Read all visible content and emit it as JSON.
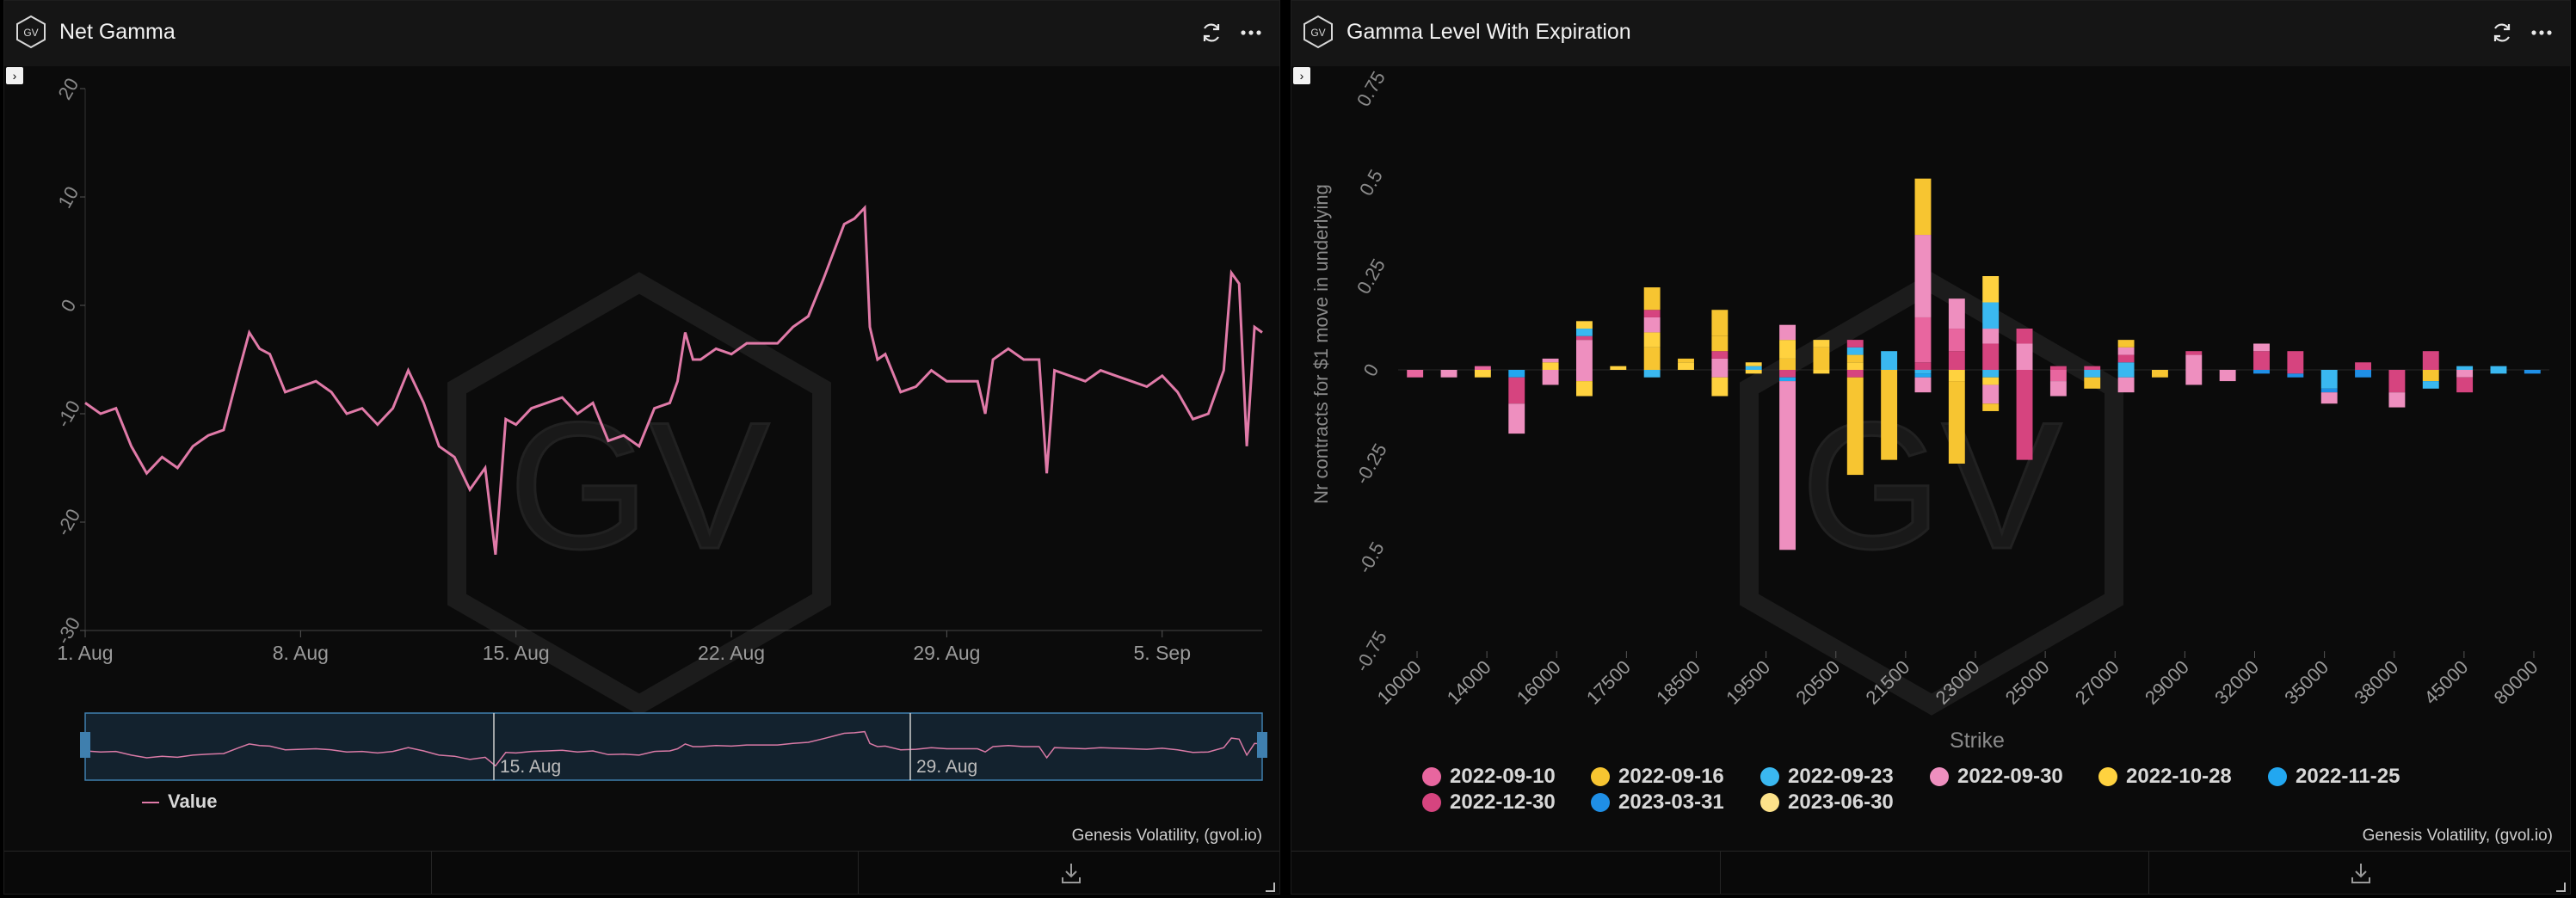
{
  "panels": [
    {
      "title": "Net Gamma",
      "credit": "Genesis Volatility, (gvol.io)",
      "logo_text": "GV",
      "navigator_labels": [
        "15. Aug",
        "29. Aug"
      ],
      "legend_label": "Value"
    },
    {
      "title": "Gamma Level With Expiration",
      "credit": "Genesis Volatility, (gvol.io)",
      "logo_text": "GV"
    }
  ],
  "colors": {
    "line": "#e07aa8",
    "background": "#0b0b0b",
    "header": "#151515",
    "series": [
      "#e8669f",
      "#f7c531",
      "#3ab8f0",
      "#ee8fbf",
      "#ffd23f",
      "#22a7f0",
      "#d6447f",
      "#1f8fe6",
      "#fde28a"
    ]
  },
  "icons": {
    "refresh": "refresh-icon",
    "menu": "more-dots-icon",
    "download": "download-icon",
    "expand": "expand-icon"
  },
  "chart_data": [
    {
      "type": "line",
      "title": "Net Gamma",
      "xlabel": "",
      "ylabel": "",
      "x_ticks": [
        "1. Aug",
        "8. Aug",
        "15. Aug",
        "22. Aug",
        "29. Aug",
        "5. Sep"
      ],
      "y_ticks": [
        "20",
        "10",
        "0",
        "-10",
        "-20",
        "-30"
      ],
      "ylim": [
        -30,
        20
      ],
      "xlim": [
        "2022-08-01",
        "2022-09-08"
      ],
      "grid": "x",
      "legend": "bottom-left",
      "series": [
        {
          "name": "Value",
          "points": [
            [
              "2022-08-01",
              -9
            ],
            [
              "2022-08-01T12",
              -10
            ],
            [
              "2022-08-02",
              -9.5
            ],
            [
              "2022-08-02T12",
              -13
            ],
            [
              "2022-08-03",
              -15.5
            ],
            [
              "2022-08-03T12",
              -14
            ],
            [
              "2022-08-04",
              -15
            ],
            [
              "2022-08-04T12",
              -13
            ],
            [
              "2022-08-05",
              -12
            ],
            [
              "2022-08-05T12",
              -11.5
            ],
            [
              "2022-08-06",
              -6
            ],
            [
              "2022-08-06T08",
              -2.5
            ],
            [
              "2022-08-06T16",
              -4
            ],
            [
              "2022-08-07",
              -4.5
            ],
            [
              "2022-08-07T12",
              -8
            ],
            [
              "2022-08-08",
              -7.5
            ],
            [
              "2022-08-08T12",
              -7
            ],
            [
              "2022-08-09",
              -8
            ],
            [
              "2022-08-09T12",
              -10
            ],
            [
              "2022-08-10",
              -9.5
            ],
            [
              "2022-08-10T12",
              -11
            ],
            [
              "2022-08-11",
              -9.5
            ],
            [
              "2022-08-11T12",
              -6
            ],
            [
              "2022-08-12",
              -9
            ],
            [
              "2022-08-12T12",
              -13
            ],
            [
              "2022-08-13",
              -14
            ],
            [
              "2022-08-13T12",
              -17
            ],
            [
              "2022-08-14",
              -15
            ],
            [
              "2022-08-14T08",
              -23
            ],
            [
              "2022-08-14T16",
              -10.5
            ],
            [
              "2022-08-15",
              -11
            ],
            [
              "2022-08-15T12",
              -9.5
            ],
            [
              "2022-08-16",
              -9
            ],
            [
              "2022-08-16T12",
              -8.5
            ],
            [
              "2022-08-17",
              -10
            ],
            [
              "2022-08-17T12",
              -9
            ],
            [
              "2022-08-18",
              -12.5
            ],
            [
              "2022-08-18T12",
              -12
            ],
            [
              "2022-08-19",
              -13
            ],
            [
              "2022-08-19T12",
              -9.5
            ],
            [
              "2022-08-20",
              -9
            ],
            [
              "2022-08-20T06",
              -7
            ],
            [
              "2022-08-20T12",
              -2.5
            ],
            [
              "2022-08-20T18",
              -5
            ],
            [
              "2022-08-21",
              -5
            ],
            [
              "2022-08-21T12",
              -4
            ],
            [
              "2022-08-22",
              -4.5
            ],
            [
              "2022-08-22T12",
              -3.5
            ],
            [
              "2022-08-23",
              -3.5
            ],
            [
              "2022-08-23T12",
              -3.5
            ],
            [
              "2022-08-24",
              -2
            ],
            [
              "2022-08-24T12",
              -1
            ],
            [
              "2022-08-25",
              2.5
            ],
            [
              "2022-08-25T08",
              5
            ],
            [
              "2022-08-25T16",
              7.5
            ],
            [
              "2022-08-26",
              8
            ],
            [
              "2022-08-26T08",
              9
            ],
            [
              "2022-08-26T12",
              -2
            ],
            [
              "2022-08-26T18",
              -5
            ],
            [
              "2022-08-27",
              -4.5
            ],
            [
              "2022-08-27T12",
              -8
            ],
            [
              "2022-08-28",
              -7.5
            ],
            [
              "2022-08-28T12",
              -6
            ],
            [
              "2022-08-29",
              -7
            ],
            [
              "2022-08-29T12",
              -7
            ],
            [
              "2022-08-30",
              -7
            ],
            [
              "2022-08-30T06",
              -10
            ],
            [
              "2022-08-30T12",
              -5
            ],
            [
              "2022-08-31",
              -4
            ],
            [
              "2022-08-31T12",
              -5
            ],
            [
              "2022-09-01",
              -5
            ],
            [
              "2022-09-01T06",
              -15.5
            ],
            [
              "2022-09-01T12",
              -6
            ],
            [
              "2022-09-02",
              -6.5
            ],
            [
              "2022-09-02T12",
              -7
            ],
            [
              "2022-09-03",
              -6
            ],
            [
              "2022-09-03T12",
              -6.5
            ],
            [
              "2022-09-04",
              -7
            ],
            [
              "2022-09-04T12",
              -7.5
            ],
            [
              "2022-09-05",
              -6.5
            ],
            [
              "2022-09-05T12",
              -8
            ],
            [
              "2022-09-06",
              -10.5
            ],
            [
              "2022-09-06T12",
              -10
            ],
            [
              "2022-09-07",
              -6
            ],
            [
              "2022-09-07T06",
              3
            ],
            [
              "2022-09-07T12",
              2
            ],
            [
              "2022-09-07T18",
              -13
            ],
            [
              "2022-09-08",
              -2
            ],
            [
              "2022-09-08T06",
              -2.5
            ]
          ]
        }
      ]
    },
    {
      "type": "bar",
      "title": "Gamma Level With Expiration",
      "xlabel": "Strike",
      "ylabel": "Nr contracts for $1 move in underlying",
      "ylim": [
        -0.75,
        0.75
      ],
      "y_ticks": [
        "0.75",
        "0.5",
        "0.25",
        "0",
        "-0.25",
        "-0.5",
        "-0.75"
      ],
      "stacked": true,
      "legend": "bottom",
      "x_tick_labels": [
        "10000",
        "14000",
        "16000",
        "17500",
        "18500",
        "19500",
        "20500",
        "21500",
        "23000",
        "25000",
        "27000",
        "29000",
        "32000",
        "35000",
        "38000",
        "45000",
        "80000"
      ],
      "series_names": [
        "2022-09-10",
        "2022-09-16",
        "2022-09-23",
        "2022-09-30",
        "2022-10-28",
        "2022-11-25",
        "2022-12-30",
        "2023-03-31",
        "2023-06-30"
      ],
      "bars": [
        {
          "pos": [],
          "neg": [
            [
              0,
              0.02
            ]
          ]
        },
        {
          "pos": [],
          "neg": [
            [
              3,
              0.02
            ]
          ]
        },
        {
          "pos": [
            [
              0,
              0.01
            ]
          ],
          "neg": [
            [
              4,
              0.02
            ]
          ]
        },
        {
          "pos": [],
          "neg": [
            [
              5,
              0.02
            ],
            [
              6,
              0.07
            ],
            [
              3,
              0.08
            ]
          ]
        },
        {
          "pos": [
            [
              4,
              0.02
            ],
            [
              3,
              0.01
            ]
          ],
          "neg": [
            [
              3,
              0.04
            ]
          ]
        },
        {
          "pos": [
            [
              3,
              0.08
            ],
            [
              6,
              0.01
            ],
            [
              2,
              0.02
            ],
            [
              4,
              0.02
            ]
          ],
          "neg": [
            [
              3,
              0.03
            ],
            [
              4,
              0.04
            ]
          ]
        },
        {
          "pos": [
            [
              4,
              0.01
            ]
          ],
          "neg": []
        },
        {
          "pos": [
            [
              1,
              0.06
            ],
            [
              4,
              0.04
            ],
            [
              3,
              0.04
            ],
            [
              6,
              0.02
            ],
            [
              1,
              0.06
            ]
          ],
          "neg": [
            [
              2,
              0.02
            ]
          ]
        },
        {
          "pos": [
            [
              4,
              0.02
            ],
            [
              1,
              0.01
            ]
          ],
          "neg": []
        },
        {
          "pos": [
            [
              3,
              0.03
            ],
            [
              6,
              0.02
            ],
            [
              1,
              0.04
            ],
            [
              1,
              0.07
            ]
          ],
          "neg": [
            [
              3,
              0.02
            ],
            [
              4,
              0.05
            ]
          ]
        },
        {
          "pos": [
            [
              2,
              0.01
            ],
            [
              4,
              0.01
            ]
          ],
          "neg": [
            [
              4,
              0.01
            ]
          ]
        },
        {
          "pos": [
            [
              1,
              0.03
            ],
            [
              4,
              0.05
            ],
            [
              3,
              0.04
            ]
          ],
          "neg": [
            [
              6,
              0.02
            ],
            [
              5,
              0.01
            ],
            [
              3,
              0.45
            ]
          ]
        },
        {
          "pos": [
            [
              1,
              0.06
            ],
            [
              4,
              0.02
            ]
          ],
          "neg": [
            [
              4,
              0.01
            ]
          ]
        },
        {
          "pos": [
            [
              4,
              0.02
            ],
            [
              1,
              0.02
            ],
            [
              2,
              0.02
            ],
            [
              6,
              0.02
            ]
          ],
          "neg": [
            [
              6,
              0.02
            ],
            [
              1,
              0.26
            ]
          ]
        },
        {
          "pos": [
            [
              2,
              0.05
            ]
          ],
          "neg": [
            [
              1,
              0.24
            ]
          ]
        },
        {
          "pos": [
            [
              6,
              0.02
            ],
            [
              0,
              0.12
            ],
            [
              3,
              0.22
            ],
            [
              1,
              0.15
            ]
          ],
          "neg": [
            [
              2,
              0.01
            ],
            [
              5,
              0.01
            ],
            [
              3,
              0.04
            ]
          ]
        },
        {
          "pos": [
            [
              6,
              0.05
            ],
            [
              0,
              0.06
            ],
            [
              3,
              0.08
            ]
          ],
          "neg": [
            [
              4,
              0.03
            ],
            [
              1,
              0.22
            ]
          ]
        },
        {
          "pos": [
            [
              6,
              0.07
            ],
            [
              3,
              0.04
            ],
            [
              2,
              0.07
            ],
            [
              4,
              0.07
            ]
          ],
          "neg": [
            [
              2,
              0.02
            ],
            [
              4,
              0.02
            ],
            [
              3,
              0.05
            ],
            [
              1,
              0.02
            ]
          ]
        },
        {
          "pos": [
            [
              3,
              0.07
            ],
            [
              6,
              0.04
            ]
          ],
          "neg": [
            [
              6,
              0.24
            ]
          ]
        },
        {
          "pos": [
            [
              6,
              0.01
            ]
          ],
          "neg": [
            [
              0,
              0.03
            ],
            [
              3,
              0.04
            ]
          ]
        },
        {
          "pos": [
            [
              6,
              0.01
            ]
          ],
          "neg": [
            [
              2,
              0.02
            ],
            [
              1,
              0.03
            ]
          ]
        },
        {
          "pos": [
            [
              2,
              0.02
            ],
            [
              6,
              0.02
            ],
            [
              3,
              0.02
            ],
            [
              1,
              0.02
            ]
          ],
          "neg": [
            [
              2,
              0.02
            ],
            [
              3,
              0.04
            ]
          ]
        },
        {
          "pos": [],
          "neg": [
            [
              1,
              0.02
            ]
          ]
        },
        {
          "pos": [
            [
              3,
              0.04
            ],
            [
              6,
              0.01
            ]
          ],
          "neg": [
            [
              3,
              0.04
            ]
          ]
        },
        {
          "pos": [],
          "neg": [
            [
              3,
              0.03
            ]
          ]
        },
        {
          "pos": [
            [
              6,
              0.05
            ],
            [
              3,
              0.02
            ]
          ],
          "neg": [
            [
              7,
              0.01
            ]
          ]
        },
        {
          "pos": [
            [
              6,
              0.05
            ]
          ],
          "neg": [
            [
              6,
              0.01
            ],
            [
              7,
              0.01
            ]
          ]
        },
        {
          "pos": [],
          "neg": [
            [
              2,
              0.05
            ],
            [
              7,
              0.01
            ],
            [
              3,
              0.03
            ]
          ]
        },
        {
          "pos": [
            [
              6,
              0.02
            ]
          ],
          "neg": [
            [
              7,
              0.02
            ]
          ]
        },
        {
          "pos": [],
          "neg": [
            [
              6,
              0.06
            ],
            [
              3,
              0.04
            ]
          ]
        },
        {
          "pos": [
            [
              6,
              0.05
            ]
          ],
          "neg": [
            [
              1,
              0.03
            ],
            [
              2,
              0.02
            ]
          ]
        },
        {
          "pos": [
            [
              2,
              0.01
            ]
          ],
          "neg": [
            [
              3,
              0.02
            ],
            [
              6,
              0.04
            ]
          ]
        },
        {
          "pos": [
            [
              2,
              0.01
            ]
          ],
          "neg": [
            [
              2,
              0.01
            ]
          ]
        },
        {
          "pos": [],
          "neg": [
            [
              7,
              0.01
            ]
          ]
        }
      ]
    }
  ]
}
